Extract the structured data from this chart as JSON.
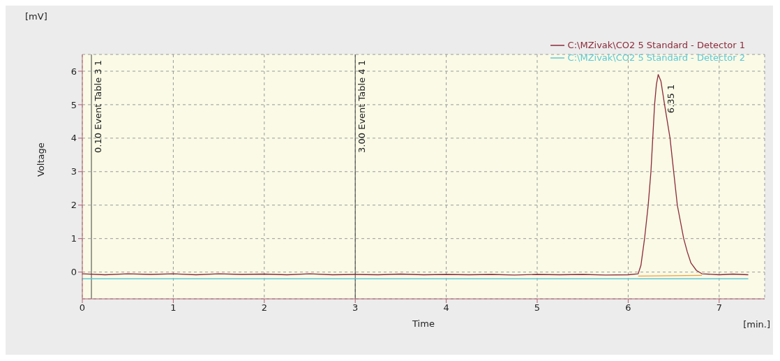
{
  "chart_data": {
    "type": "line",
    "xlabel": "Time",
    "ylabel": "Voltage",
    "xlim": [
      0,
      7.5
    ],
    "ylim": [
      -0.8,
      6.5
    ],
    "xticks": [
      0,
      1,
      2,
      3,
      4,
      5,
      6,
      7
    ],
    "yticks": [
      0,
      1,
      2,
      3,
      4,
      5,
      6
    ],
    "grid": true,
    "legend": "top right",
    "marker": "none",
    "line_style": "solid",
    "series": [
      {
        "name": "C:\\MZivak\\CO2 5 Standard - Detector 1",
        "color": "#8b2a3a",
        "x": [
          0,
          0.25,
          0.5,
          0.75,
          1,
          1.25,
          1.5,
          1.75,
          2,
          2.25,
          2.5,
          2.75,
          3,
          3.25,
          3.5,
          3.75,
          4,
          4.25,
          4.5,
          4.75,
          5,
          5.25,
          5.5,
          5.75,
          6,
          6.11,
          6.14,
          6.18,
          6.22,
          6.25,
          6.27,
          6.29,
          6.31,
          6.33,
          6.36,
          6.4,
          6.46,
          6.5,
          6.54,
          6.61,
          6.65,
          6.69,
          6.75,
          6.81,
          7,
          7.15,
          7.32
        ],
        "values": [
          -0.05,
          -0.08,
          -0.05,
          -0.07,
          -0.05,
          -0.08,
          -0.05,
          -0.07,
          -0.06,
          -0.08,
          -0.05,
          -0.08,
          -0.07,
          -0.08,
          -0.06,
          -0.08,
          -0.07,
          -0.08,
          -0.07,
          -0.09,
          -0.07,
          -0.08,
          -0.07,
          -0.09,
          -0.08,
          -0.05,
          0.2,
          1,
          2,
          3,
          4,
          5,
          5.6,
          5.9,
          5.7,
          5,
          4,
          3,
          2,
          1,
          0.6,
          0.27,
          0.05,
          -0.05,
          -0.08,
          -0.06,
          -0.08
        ]
      },
      {
        "name": "C:\\MZivak\\CO2 5 Standard - Detector 2",
        "color": "#5bc8d8",
        "x": [
          0,
          7.32
        ],
        "values": [
          -0.2,
          -0.2
        ]
      },
      {
        "color": "#f0a040",
        "x": [
          6.11,
          6.81
        ],
        "values": [
          -0.12,
          -0.1
        ]
      }
    ],
    "ref_lines": [
      {
        "axis": "x",
        "value": 0.1,
        "label": "0.10 Event Table 3 1",
        "color": "#404040"
      },
      {
        "axis": "x",
        "value": 3,
        "label": "3.00 Event Table 4 1",
        "color": "#404040"
      }
    ],
    "annotations": [
      "[mV]",
      "[min.]",
      {
        "text": "6.35  1",
        "x": 6.35,
        "y": 5.9
      }
    ]
  }
}
